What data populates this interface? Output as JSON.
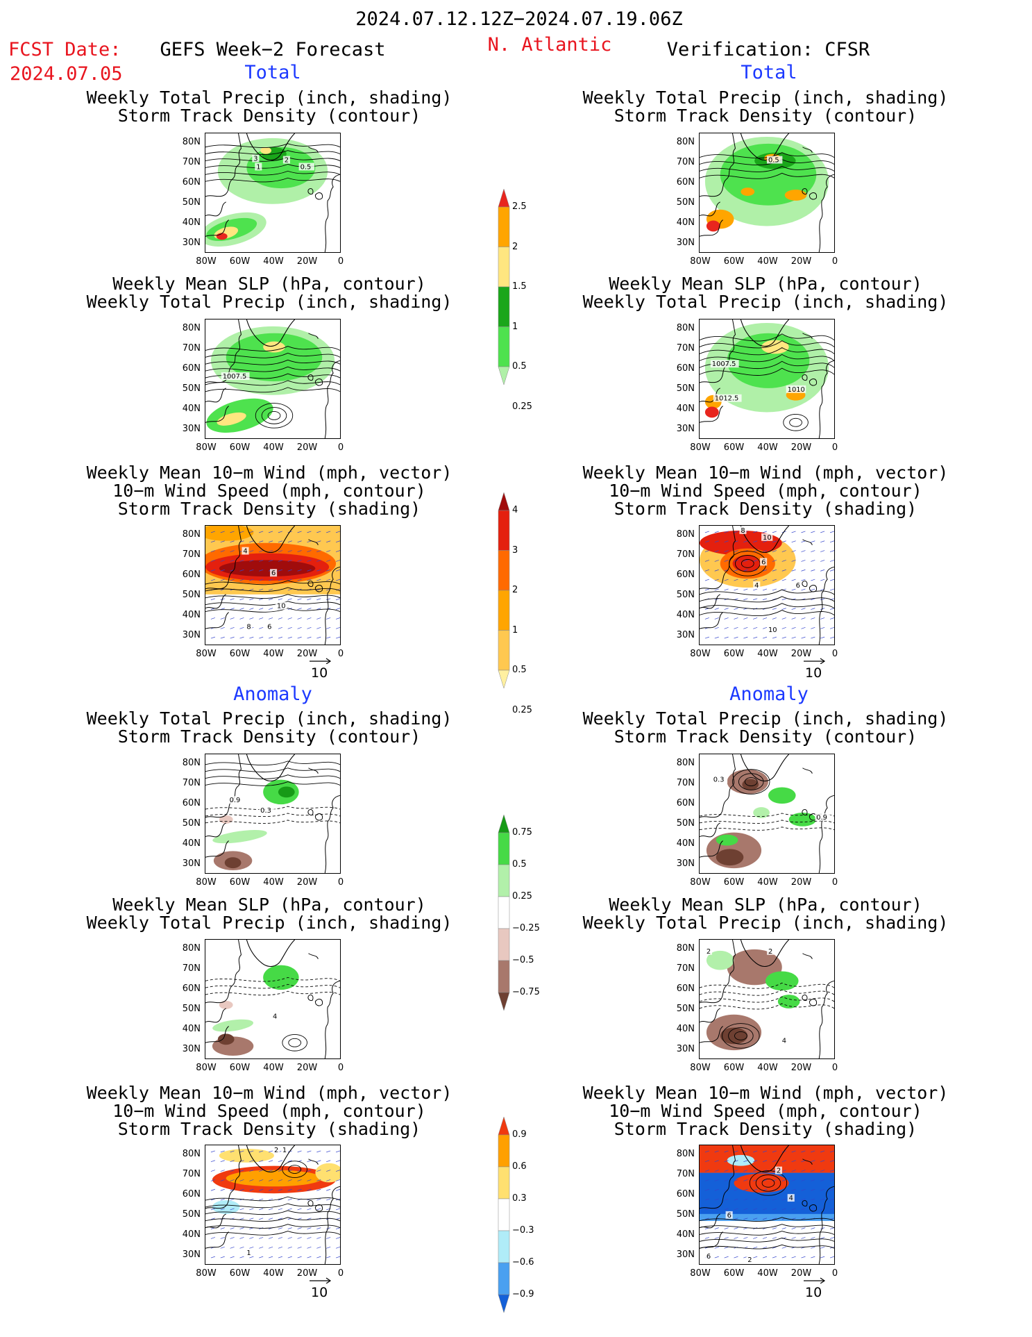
{
  "header": {
    "date_range": "2024.07.12.12Z−2024.07.19.06Z",
    "fcst_label": "FCST Date:",
    "fcst_date": "2024.07.05",
    "left_title": "GEFS Week−2 Forecast",
    "region": "N. Atlantic",
    "right_title": "Verification: CFSR"
  },
  "sections": {
    "total": "Total",
    "anomaly": "Anomaly"
  },
  "panel_titles": {
    "precip_track": [
      "Weekly Total Precip (inch, shading)",
      "Storm Track Density (contour)"
    ],
    "slp_precip": [
      "Weekly Mean SLP (hPa, contour)",
      "Weekly Total Precip (inch, shading)"
    ],
    "wind_track": [
      "Weekly Mean 10−m Wind (mph, vector)",
      "10−m Wind Speed (mph, contour)",
      "Storm Track Density (shading)"
    ]
  },
  "axes": {
    "lat": [
      "80N",
      "70N",
      "60N",
      "50N",
      "40N",
      "30N"
    ],
    "lon": [
      "80W",
      "60W",
      "40W",
      "20W",
      "0"
    ]
  },
  "vector_ref": "10",
  "colorbars": {
    "precip": {
      "labels": [
        "2.5",
        "2",
        "1.5",
        "1",
        "0.5",
        "0.25"
      ],
      "colors": [
        "#e8261e",
        "#ffa500",
        "#ffe680",
        "#1aa61a",
        "#4ee24e",
        "#b0f0a8"
      ]
    },
    "track": {
      "labels": [
        "4",
        "3",
        "2",
        "1",
        "0.5",
        "0.25"
      ],
      "colors": [
        "#a00c0c",
        "#e4200e",
        "#ff6a00",
        "#ffa500",
        "#ffc850",
        "#fff0a0"
      ]
    },
    "precip_anom": {
      "labels": [
        "0.75",
        "0.5",
        "0.25",
        "−0.25",
        "−0.5",
        "−0.75"
      ],
      "colors": [
        "#169a16",
        "#46da46",
        "#b2f0aa",
        "#ffffff",
        "#e8c8c0",
        "#a8786c",
        "#6e4032"
      ]
    },
    "track_anom": {
      "labels": [
        "0.9",
        "0.6",
        "0.3",
        "−0.3",
        "−0.6",
        "−0.9"
      ],
      "colors": [
        "#f03a10",
        "#ffa000",
        "#ffe070",
        "#ffffff",
        "#b0ecf8",
        "#4aa0f0",
        "#1460d8"
      ]
    }
  },
  "panels": [
    {
      "id": "fcst-total-precip",
      "labels": [
        "3",
        "2",
        "1",
        "0.5"
      ]
    },
    {
      "id": "obs-total-precip",
      "labels": [
        "0.5"
      ]
    },
    {
      "id": "fcst-total-slp",
      "labels": [
        "1007.5"
      ]
    },
    {
      "id": "obs-total-slp",
      "labels": [
        "1007.5",
        "1012.5",
        "1010"
      ]
    },
    {
      "id": "fcst-total-wind",
      "labels": [
        "4",
        "6",
        "10",
        "8",
        "6"
      ]
    },
    {
      "id": "obs-total-wind",
      "labels": [
        "8",
        "10",
        "6",
        "4",
        "6",
        "10"
      ]
    },
    {
      "id": "fcst-anom-precip",
      "labels": [
        "0.9",
        "0.3"
      ]
    },
    {
      "id": "obs-anom-precip",
      "labels": [
        "0.3",
        "0.9"
      ]
    },
    {
      "id": "fcst-anom-slp",
      "labels": [
        "4"
      ]
    },
    {
      "id": "obs-anom-slp",
      "labels": [
        "2",
        "2",
        "4"
      ]
    },
    {
      "id": "fcst-anom-wind",
      "labels": [
        "2",
        "1",
        "1"
      ]
    },
    {
      "id": "obs-anom-wind",
      "labels": [
        "2",
        "4",
        "6",
        "2",
        "6"
      ]
    }
  ]
}
